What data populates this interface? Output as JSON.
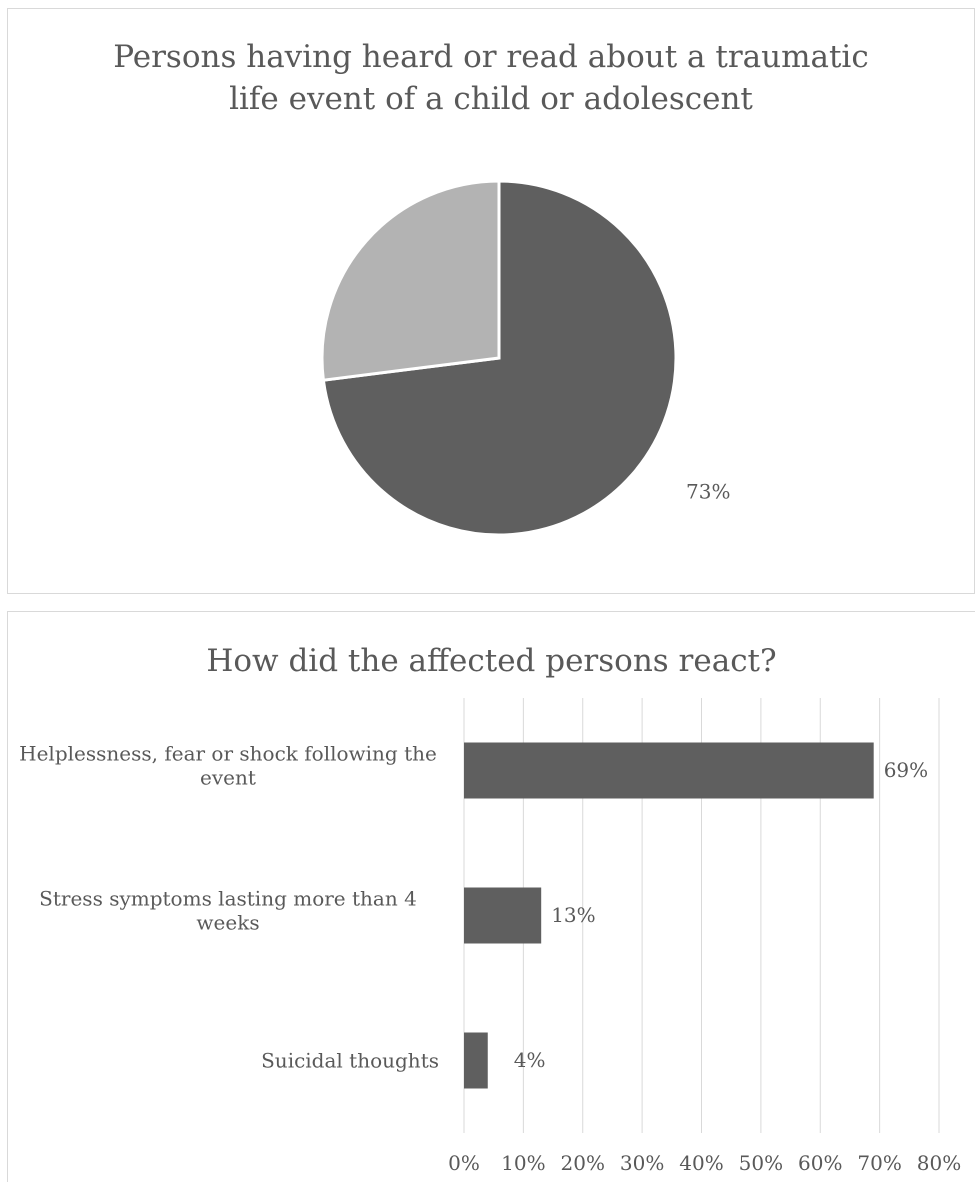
{
  "colors": {
    "dark_slice": "#5f5f5f",
    "light_slice": "#b3b3b3",
    "bar": "#5f5f5f",
    "grid": "#d9d9d9",
    "text": "#595959"
  },
  "chart_data": [
    {
      "type": "pie",
      "title": "Persons having heard or read about a traumatic life event of a child or adolescent",
      "title_lines": [
        "Persons having heard or read about a traumatic",
        "life event of a child or adolescent"
      ],
      "slices": [
        {
          "value": 73,
          "label": "73%",
          "color": "#5f5f5f"
        },
        {
          "value": 27,
          "label": "",
          "color": "#b3b3b3"
        }
      ]
    },
    {
      "type": "bar",
      "orientation": "horizontal",
      "title": "How did the affected persons react?",
      "categories": [
        [
          "Helplessness, fear or shock following the",
          "event"
        ],
        [
          "Stress symptoms lasting more than 4",
          "weeks"
        ],
        [
          "Suicidal thoughts"
        ]
      ],
      "values": [
        69,
        13,
        4
      ],
      "data_labels": [
        "69%",
        "13%",
        "4%"
      ],
      "xlim": [
        0,
        80
      ],
      "ticks": [
        "0%",
        "10%",
        "20%",
        "30%",
        "40%",
        "50%",
        "60%",
        "70%",
        "80%"
      ],
      "grid": true
    }
  ]
}
